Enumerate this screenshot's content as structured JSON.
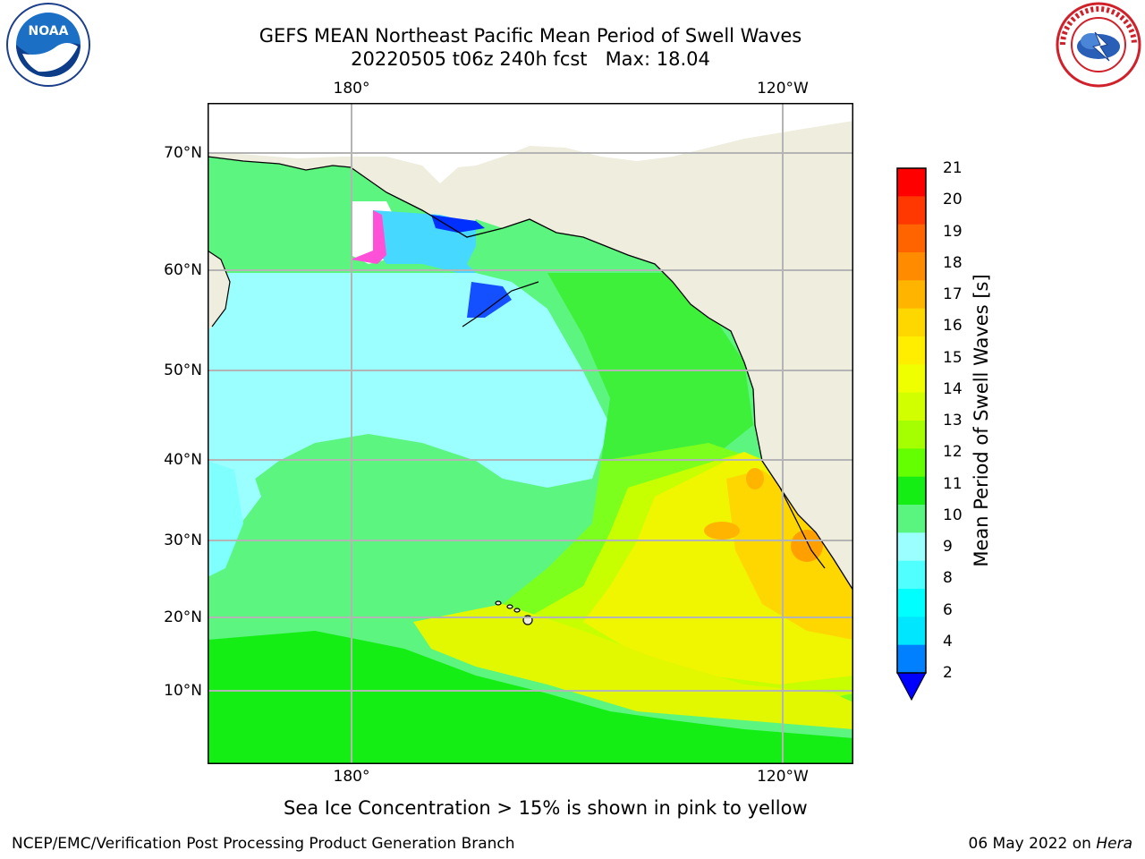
{
  "header": {
    "title_line1": "GEFS MEAN Northeast Pacific Mean Period of Swell Waves",
    "title_line2": "20220505 t06z 240h fcst   Max: 18.04"
  },
  "logos": {
    "left": {
      "name": "noaa-logo",
      "text": "NOAA"
    },
    "right": {
      "name": "nws-logo",
      "text": "NATIONAL WEATHER SERVICE"
    }
  },
  "map": {
    "lon_labels_top": [
      "180°",
      "120°W"
    ],
    "lon_labels_bottom": [
      "180°",
      "120°W"
    ],
    "lat_labels": [
      "70°N",
      "60°N",
      "50°N",
      "40°N",
      "30°N",
      "20°N",
      "10°N"
    ],
    "colors": {
      "land": "#efedde",
      "ocean_default": "#5cf57f",
      "grid": "#b4b4b4",
      "coast": "#000000"
    }
  },
  "colorbar": {
    "label": "Mean Period of Swell Waves [s]",
    "ticks": [
      "21",
      "20",
      "19",
      "18",
      "17",
      "16",
      "15",
      "14",
      "13",
      "12",
      "11",
      "10",
      "9",
      "8",
      "6",
      "4",
      "2"
    ],
    "colors_top_to_bottom": [
      "#ff0000",
      "#ff3700",
      "#ff6400",
      "#ff8c00",
      "#ffb400",
      "#ffd700",
      "#ffee00",
      "#f0ff00",
      "#d2ff00",
      "#a5ff00",
      "#64ff00",
      "#14ee14",
      "#5af57f",
      "#9bffff",
      "#50ffff",
      "#00ffff",
      "#00e6ff",
      "#0080ff"
    ],
    "extend_color": "#0000ff"
  },
  "footnote": "Sea Ice Concentration > 15% is shown in pink to yellow",
  "footer": {
    "left": "NCEP/EMC/Verification Post Processing Product Generation Branch",
    "right_date": "06 May 2022 on ",
    "right_host": "Hera"
  }
}
